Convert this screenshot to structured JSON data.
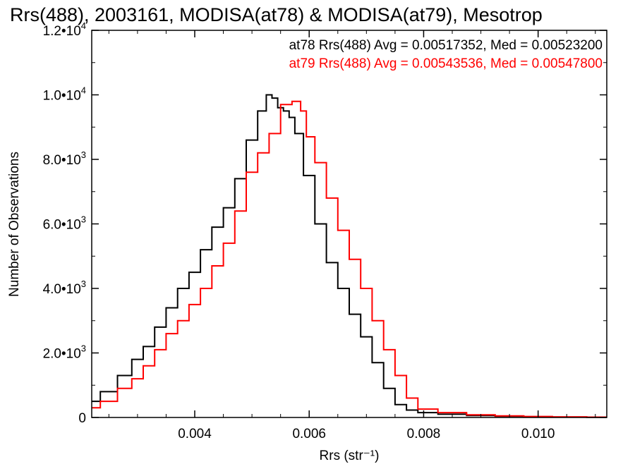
{
  "chart_data": {
    "type": "line",
    "title": "Rrs(488), 2003161, MODISA(at78) & MODISA(at79), Mesotrop",
    "xlabel": "Rrs (str⁻¹)",
    "ylabel": "Number of Observations",
    "xlim": [
      0.0022,
      0.0112
    ],
    "ylim": [
      0,
      12000
    ],
    "x_ticks": [
      {
        "value": 0.004,
        "label": "0.004"
      },
      {
        "value": 0.006,
        "label": "0.006"
      },
      {
        "value": 0.008,
        "label": "0.008"
      },
      {
        "value": 0.01,
        "label": "0.010"
      }
    ],
    "y_ticks": [
      {
        "value": 0,
        "mant": "0",
        "exp": ""
      },
      {
        "value": 2000,
        "mant": "2.0•10",
        "exp": "3"
      },
      {
        "value": 4000,
        "mant": "4.0•10",
        "exp": "3"
      },
      {
        "value": 6000,
        "mant": "6.0•10",
        "exp": "3"
      },
      {
        "value": 8000,
        "mant": "8.0•10",
        "exp": "3"
      },
      {
        "value": 10000,
        "mant": "1.0•10",
        "exp": "4"
      },
      {
        "value": 12000,
        "mant": "1.2•10",
        "exp": "4"
      }
    ],
    "grid": false,
    "legend": "top-right",
    "series": [
      {
        "label": "at78 Rrs(488) Avg = 0.00517352, Med = 0.00523200",
        "color": "#000000",
        "points": [
          [
            0.0022,
            500
          ],
          [
            0.0025,
            800
          ],
          [
            0.0028,
            1300
          ],
          [
            0.003,
            1800
          ],
          [
            0.0032,
            2200
          ],
          [
            0.0034,
            2800
          ],
          [
            0.0036,
            3400
          ],
          [
            0.0038,
            4000
          ],
          [
            0.004,
            4500
          ],
          [
            0.0042,
            5200
          ],
          [
            0.0044,
            5900
          ],
          [
            0.0046,
            6500
          ],
          [
            0.0048,
            7400
          ],
          [
            0.005,
            8600
          ],
          [
            0.0052,
            9500
          ],
          [
            0.0053,
            10000
          ],
          [
            0.0054,
            9900
          ],
          [
            0.0055,
            9600
          ],
          [
            0.0056,
            9500
          ],
          [
            0.0057,
            9300
          ],
          [
            0.0058,
            8800
          ],
          [
            0.006,
            7500
          ],
          [
            0.0062,
            6000
          ],
          [
            0.0064,
            4800
          ],
          [
            0.0066,
            4000
          ],
          [
            0.0068,
            3200
          ],
          [
            0.007,
            2500
          ],
          [
            0.0072,
            1700
          ],
          [
            0.0074,
            900
          ],
          [
            0.0076,
            400
          ],
          [
            0.0078,
            230
          ],
          [
            0.008,
            150
          ],
          [
            0.0085,
            100
          ],
          [
            0.009,
            60
          ],
          [
            0.0095,
            40
          ],
          [
            0.01,
            20
          ],
          [
            0.0105,
            10
          ],
          [
            0.0112,
            5
          ]
        ]
      },
      {
        "label": "at79 Rrs(488) Avg = 0.00543536, Med = 0.00547800",
        "color": "#ff0000",
        "points": [
          [
            0.0022,
            300
          ],
          [
            0.0025,
            500
          ],
          [
            0.0028,
            900
          ],
          [
            0.003,
            1200
          ],
          [
            0.0032,
            1600
          ],
          [
            0.0034,
            2100
          ],
          [
            0.0036,
            2600
          ],
          [
            0.0038,
            3000
          ],
          [
            0.004,
            3500
          ],
          [
            0.0042,
            4000
          ],
          [
            0.0044,
            4700
          ],
          [
            0.0046,
            5400
          ],
          [
            0.0048,
            6400
          ],
          [
            0.005,
            7600
          ],
          [
            0.0052,
            8200
          ],
          [
            0.0054,
            8800
          ],
          [
            0.0056,
            9700
          ],
          [
            0.0058,
            9800
          ],
          [
            0.0059,
            9500
          ],
          [
            0.006,
            8700
          ],
          [
            0.0062,
            7900
          ],
          [
            0.0064,
            6800
          ],
          [
            0.0066,
            5800
          ],
          [
            0.0068,
            4900
          ],
          [
            0.007,
            4000
          ],
          [
            0.0072,
            3000
          ],
          [
            0.0074,
            2100
          ],
          [
            0.0076,
            1300
          ],
          [
            0.0078,
            600
          ],
          [
            0.008,
            260
          ],
          [
            0.0085,
            150
          ],
          [
            0.009,
            80
          ],
          [
            0.0095,
            50
          ],
          [
            0.01,
            30
          ],
          [
            0.0105,
            20
          ],
          [
            0.0112,
            10
          ]
        ]
      }
    ]
  }
}
